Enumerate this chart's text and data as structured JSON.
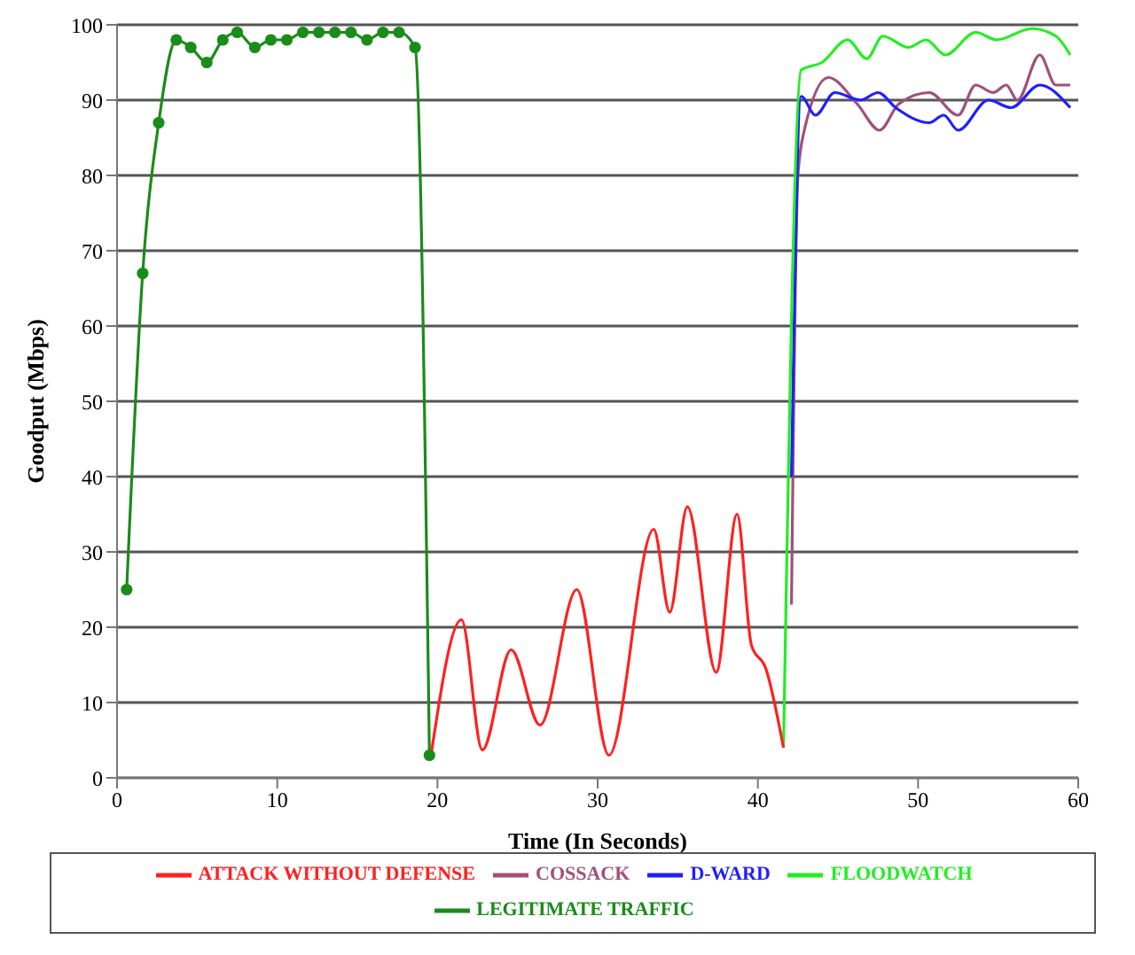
{
  "chart_data": {
    "type": "line",
    "xlabel": "Time (In Seconds)",
    "ylabel": "Goodput (Mbps)",
    "xlim": [
      0,
      60
    ],
    "xticks": [
      0,
      10,
      20,
      30,
      40,
      50,
      60
    ],
    "ylim": [
      0,
      100
    ],
    "yticks": [
      0,
      10,
      20,
      30,
      40,
      50,
      60,
      70,
      80,
      90,
      100
    ],
    "grid": "y",
    "legend": "bottom",
    "line_style": "solid",
    "series": [
      {
        "name": "COSSACK",
        "color": "#a0507a",
        "marker": "none",
        "x": [
          42.1,
          42.5,
          42.9,
          44.4,
          46.2,
          47.6,
          48.8,
          50.7,
          52.5,
          53.6,
          54.7,
          55.5,
          56.2,
          57.6,
          58.6,
          59.5
        ],
        "values": [
          23,
          80,
          86,
          93,
          89.5,
          86,
          89.5,
          91,
          88,
          92,
          91,
          92,
          90,
          96,
          92,
          92
        ]
      },
      {
        "name": "D-WARD",
        "color": "#1f1fff",
        "marker": "none",
        "x": [
          42.1,
          42.7,
          43.6,
          44.8,
          46.4,
          47.5,
          48.6,
          50.7,
          51.6,
          52.5,
          54.4,
          55.8,
          57.6,
          59.5
        ],
        "values": [
          40,
          90.5,
          88,
          91,
          90,
          91,
          89,
          87,
          88,
          86,
          90,
          89,
          92,
          89
        ]
      },
      {
        "name": "FLOODWATCH",
        "color": "#22ee22",
        "marker": "none",
        "x": [
          41.6,
          42.7,
          44,
          45.6,
          46.8,
          47.8,
          49.4,
          50.5,
          51.7,
          53.6,
          54.9,
          57.1,
          58.6,
          59.5
        ],
        "values": [
          4,
          94,
          95,
          98,
          95.5,
          98.5,
          97,
          98,
          96,
          99,
          98,
          99.5,
          98.5,
          96
        ]
      },
      {
        "name": "LEGITIMATE TRAFFIC",
        "color": "#1a8c1a",
        "marker": "circle",
        "x": [
          0.6,
          1.6,
          2.6,
          3.7,
          4.6,
          5.6,
          6.6,
          7.5,
          8.6,
          9.6,
          10.6,
          11.6,
          12.6,
          13.6,
          14.6,
          15.6,
          16.6,
          17.6,
          18.6,
          19.5
        ],
        "values": [
          25,
          67,
          87,
          98,
          97,
          95,
          98,
          99,
          97,
          98,
          98,
          99,
          99,
          99,
          99,
          98,
          99,
          99,
          97,
          3
        ]
      },
      {
        "name": "ATTACK WITHOUT DEFENSE",
        "color": "#ff2020",
        "marker": "none",
        "x": [
          19.6,
          21.5,
          22.8,
          24.6,
          26.4,
          28.7,
          30.7,
          33.5,
          34.5,
          35.6,
          37.4,
          38.7,
          39.6,
          40.5,
          41.6
        ],
        "values": [
          3,
          21,
          3.7,
          17,
          7,
          25,
          3,
          33,
          22,
          36,
          14,
          35,
          17.6,
          14.5,
          4
        ]
      }
    ]
  }
}
